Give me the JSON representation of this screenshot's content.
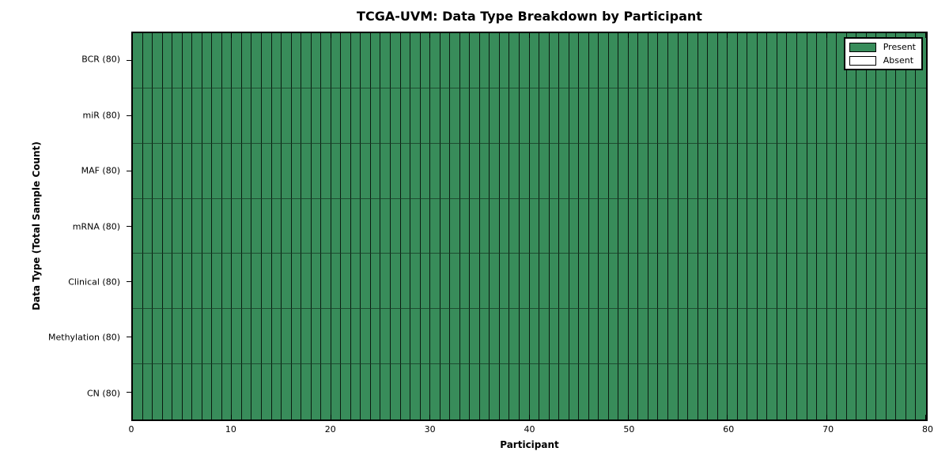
{
  "chart_data": {
    "type": "heatmap",
    "title": "TCGA-UVM: Data Type Breakdown by Participant",
    "xlabel": "Participant",
    "ylabel": "Data Type (Total Sample Count)",
    "xlim": [
      0,
      80
    ],
    "x_ticks": [
      "0",
      "10",
      "20",
      "30",
      "40",
      "50",
      "60",
      "70",
      "80"
    ],
    "participants": 80,
    "grid": "cell-borders",
    "legend_position": "upper right",
    "rows": [
      {
        "label": "BCR (80)",
        "data_type": "BCR",
        "total_sample_count": 80,
        "present": 80,
        "absent": 0
      },
      {
        "label": "miR (80)",
        "data_type": "miR",
        "total_sample_count": 80,
        "present": 80,
        "absent": 0
      },
      {
        "label": "MAF (80)",
        "data_type": "MAF",
        "total_sample_count": 80,
        "present": 80,
        "absent": 0
      },
      {
        "label": "mRNA (80)",
        "data_type": "mRNA",
        "total_sample_count": 80,
        "present": 80,
        "absent": 0
      },
      {
        "label": "Clinical (80)",
        "data_type": "Clinical",
        "total_sample_count": 80,
        "present": 80,
        "absent": 0
      },
      {
        "label": "Methylation (80)",
        "data_type": "Methylation",
        "total_sample_count": 80,
        "present": 80,
        "absent": 0
      },
      {
        "label": "CN (80)",
        "data_type": "CN",
        "total_sample_count": 80,
        "present": 80,
        "absent": 0
      }
    ],
    "legend": [
      {
        "label": "Present",
        "color": "#388c5a"
      },
      {
        "label": "Absent",
        "color": "#ffffff"
      }
    ],
    "colors": {
      "present": "#388c5a",
      "absent": "#ffffff",
      "edge": "#000000",
      "background": "#ffffff"
    }
  }
}
